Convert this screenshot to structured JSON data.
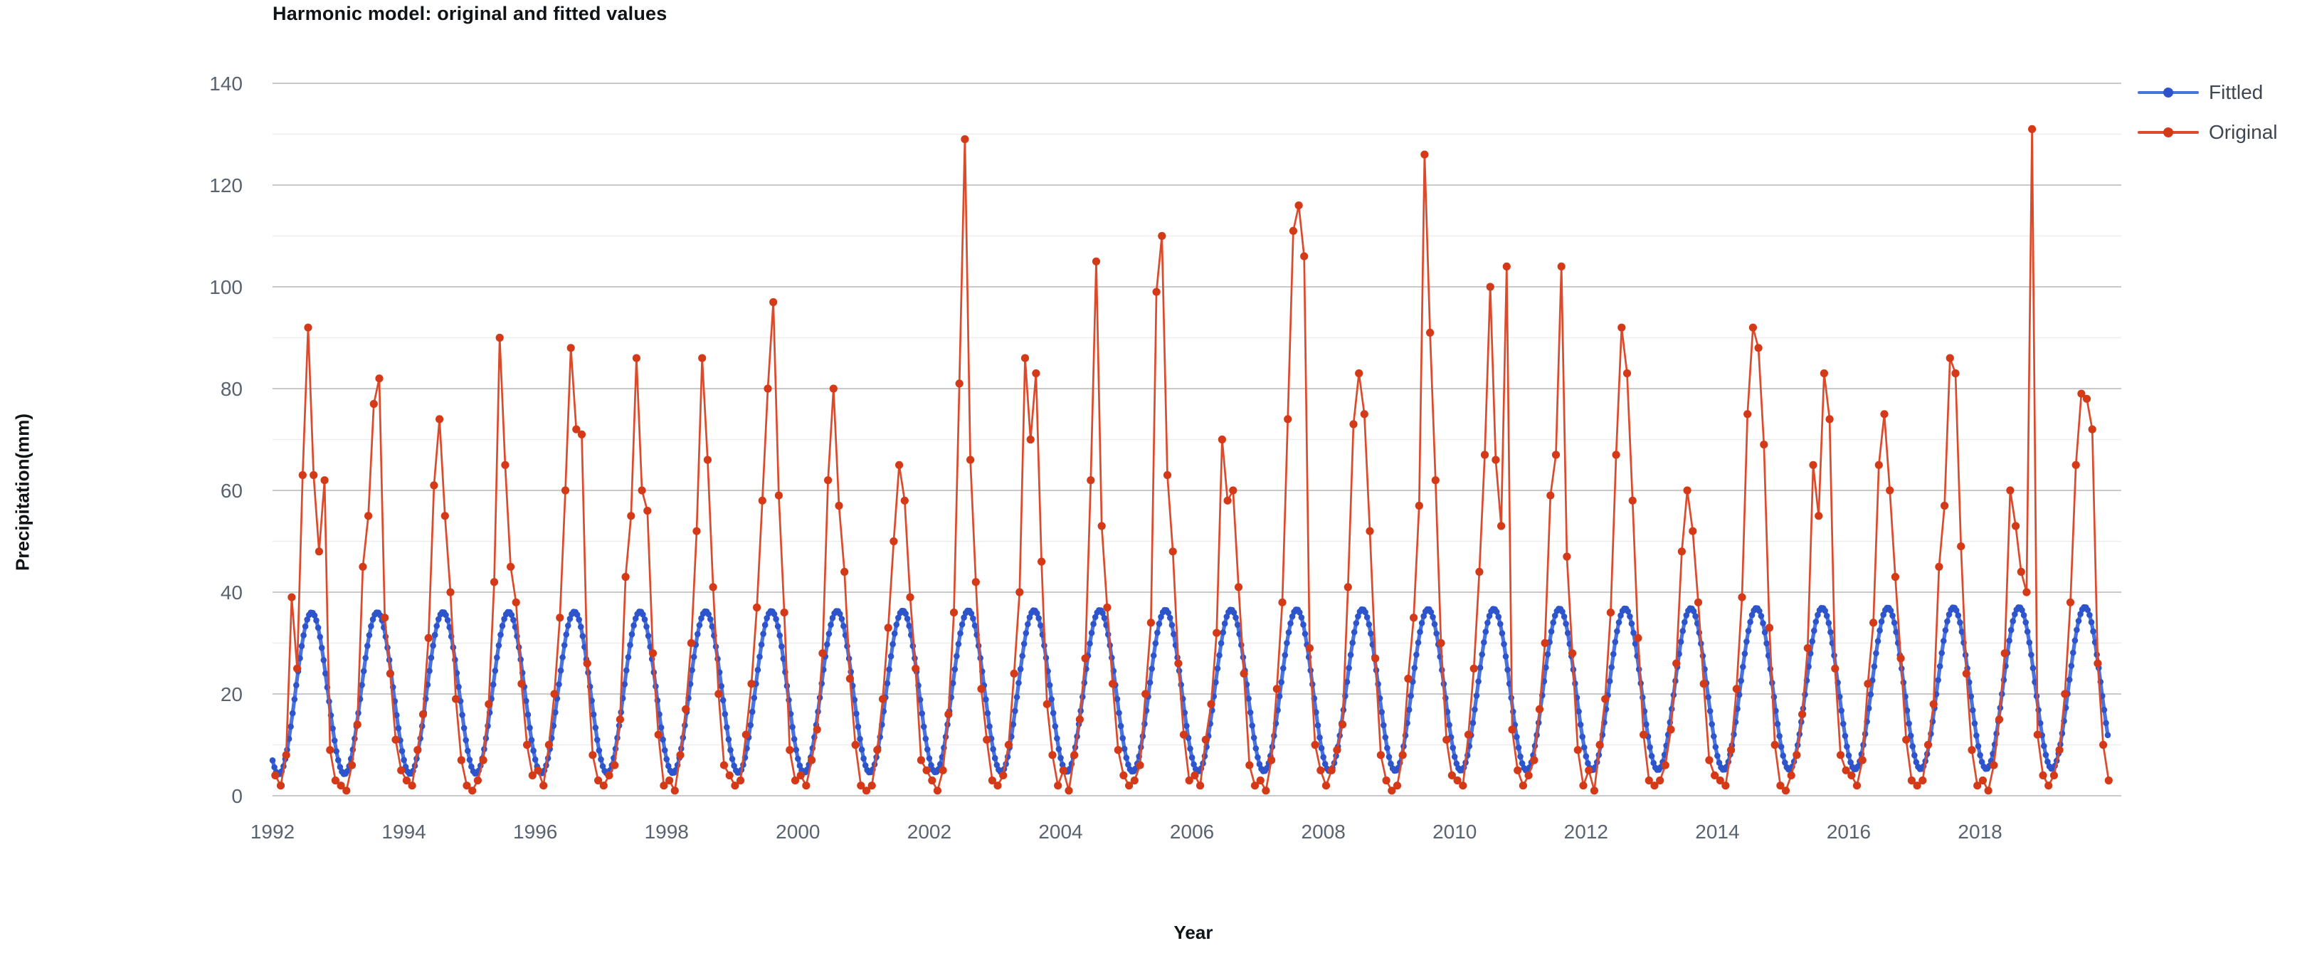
{
  "title": "Harmonic model: original and fitted values",
  "axes": {
    "x": {
      "label": "Year",
      "tick_labels": [
        "1992",
        "1994",
        "1996",
        "1998",
        "2000",
        "2002",
        "2004",
        "2006",
        "2008",
        "2010",
        "2012",
        "2014",
        "2016",
        "2018"
      ],
      "min": 1992,
      "max": 2020.15
    },
    "y": {
      "label": "Precipitation(mm)",
      "tick_labels": [
        "0",
        "20",
        "40",
        "60",
        "80",
        "100",
        "120",
        "140"
      ],
      "major_step": 20,
      "minor_step": 10,
      "min": 0,
      "max": 140
    }
  },
  "legend": {
    "items": [
      {
        "label": "Fittled",
        "line_color": "#4b73dd",
        "marker_color": "#2d54cb"
      },
      {
        "label": "Original",
        "line_color": "#db4a2b",
        "marker_color": "#d43a18"
      }
    ]
  },
  "style": {
    "grid_major_color": "#c9c9c9",
    "grid_minor_color": "#ededed",
    "tick_label_color": "#59626f",
    "title_color": "#111417",
    "background": "#ffffff"
  },
  "chart_data": {
    "type": "line",
    "title": "Harmonic model: original and fitted values",
    "xlabel": "Year",
    "ylabel": "Precipitation(mm)",
    "x_unit": "decimal_year",
    "xlim": [
      1992.0,
      2020.15
    ],
    "ylim": [
      0,
      140
    ],
    "grid": "horizontal, major every 20 with minor every 10",
    "legend_position": "right-top",
    "series": [
      {
        "name": "Fittled",
        "kind": "harmonic_fit",
        "color": "#4b73dd",
        "marker_color": "#2d54cb",
        "samples_per_year": 36,
        "start": 1992.0,
        "end": 2019.97,
        "harmonic": {
          "mean": 20.1,
          "amplitude": 15.9,
          "peak_year_fraction": 0.595,
          "trend_per_year": 0.04
        },
        "monthly_profile_year1": [
          5.1,
          4.5,
          8.0,
          14.9,
          23.1,
          30.5,
          35.1,
          35.7,
          32.2,
          25.3,
          17.1,
          9.7
        ]
      },
      {
        "name": "Original",
        "kind": "observed_monthly",
        "color": "#db4a2b",
        "marker_color": "#d43a18",
        "samples_per_year": 12,
        "start_year": 1992,
        "monthly_values_by_year": [
          {
            "year": 1992,
            "values": [
              4,
              2,
              8,
              39,
              25,
              63,
              92,
              63,
              48,
              62,
              9,
              3
            ]
          },
          {
            "year": 1993,
            "values": [
              2,
              1,
              6,
              14,
              45,
              55,
              77,
              82,
              35,
              24,
              11,
              5
            ]
          },
          {
            "year": 1994,
            "values": [
              3,
              2,
              9,
              16,
              31,
              61,
              74,
              55,
              40,
              19,
              7,
              2
            ]
          },
          {
            "year": 1995,
            "values": [
              1,
              3,
              7,
              18,
              42,
              90,
              65,
              45,
              38,
              22,
              10,
              4
            ]
          },
          {
            "year": 1996,
            "values": [
              5,
              2,
              10,
              20,
              35,
              60,
              88,
              72,
              71,
              26,
              8,
              3
            ]
          },
          {
            "year": 1997,
            "values": [
              2,
              4,
              6,
              15,
              43,
              55,
              86,
              60,
              56,
              28,
              12,
              2
            ]
          },
          {
            "year": 1998,
            "values": [
              3,
              1,
              8,
              17,
              30,
              52,
              86,
              66,
              41,
              20,
              6,
              4
            ]
          },
          {
            "year": 1999,
            "values": [
              2,
              3,
              12,
              22,
              37,
              58,
              80,
              97,
              59,
              36,
              9,
              3
            ]
          },
          {
            "year": 2000,
            "values": [
              4,
              2,
              7,
              13,
              28,
              62,
              80,
              57,
              44,
              23,
              10,
              2
            ]
          },
          {
            "year": 2001,
            "values": [
              1,
              2,
              9,
              19,
              33,
              50,
              65,
              58,
              39,
              25,
              7,
              5
            ]
          },
          {
            "year": 2002,
            "values": [
              3,
              1,
              5,
              16,
              36,
              81,
              129,
              66,
              42,
              21,
              11,
              3
            ]
          },
          {
            "year": 2003,
            "values": [
              2,
              4,
              10,
              24,
              40,
              86,
              70,
              83,
              46,
              18,
              8,
              2
            ]
          },
          {
            "year": 2004,
            "values": [
              5,
              1,
              8,
              15,
              27,
              62,
              105,
              53,
              37,
              22,
              9,
              4
            ]
          },
          {
            "year": 2005,
            "values": [
              2,
              3,
              6,
              20,
              34,
              99,
              110,
              63,
              48,
              26,
              12,
              3
            ]
          },
          {
            "year": 2006,
            "values": [
              4,
              2,
              11,
              18,
              32,
              70,
              58,
              60,
              41,
              24,
              6,
              2
            ]
          },
          {
            "year": 2007,
            "values": [
              3,
              1,
              7,
              21,
              38,
              74,
              111,
              116,
              106,
              29,
              10,
              5
            ]
          },
          {
            "year": 2008,
            "values": [
              2,
              5,
              9,
              14,
              41,
              73,
              83,
              75,
              52,
              27,
              8,
              3
            ]
          },
          {
            "year": 2009,
            "values": [
              1,
              2,
              8,
              23,
              35,
              57,
              126,
              91,
              62,
              30,
              11,
              4
            ]
          },
          {
            "year": 2010,
            "values": [
              3,
              2,
              12,
              25,
              44,
              67,
              100,
              66,
              53,
              104,
              13,
              5
            ]
          },
          {
            "year": 2011,
            "values": [
              2,
              4,
              7,
              17,
              30,
              59,
              67,
              104,
              47,
              28,
              9,
              2
            ]
          },
          {
            "year": 2012,
            "values": [
              5,
              1,
              10,
              19,
              36,
              67,
              92,
              83,
              58,
              31,
              12,
              3
            ]
          },
          {
            "year": 2013,
            "values": [
              2,
              3,
              6,
              13,
              26,
              48,
              60,
              52,
              38,
              22,
              7,
              4
            ]
          },
          {
            "year": 2014,
            "values": [
              3,
              2,
              9,
              21,
              39,
              75,
              92,
              88,
              69,
              33,
              10,
              2
            ]
          },
          {
            "year": 2015,
            "values": [
              1,
              4,
              8,
              16,
              29,
              65,
              55,
              83,
              74,
              25,
              8,
              5
            ]
          },
          {
            "year": 2016,
            "values": [
              4,
              2,
              7,
              22,
              34,
              65,
              75,
              60,
              43,
              27,
              11,
              3
            ]
          },
          {
            "year": 2017,
            "values": [
              2,
              3,
              10,
              18,
              45,
              57,
              86,
              83,
              49,
              24,
              9,
              2
            ]
          },
          {
            "year": 2018,
            "values": [
              3,
              1,
              6,
              15,
              28,
              60,
              53,
              44,
              40,
              131,
              12,
              4
            ]
          },
          {
            "year": 2019,
            "values": [
              2,
              4,
              9,
              20,
              38,
              65,
              79,
              78,
              72,
              26,
              10,
              3
            ]
          }
        ]
      }
    ]
  }
}
